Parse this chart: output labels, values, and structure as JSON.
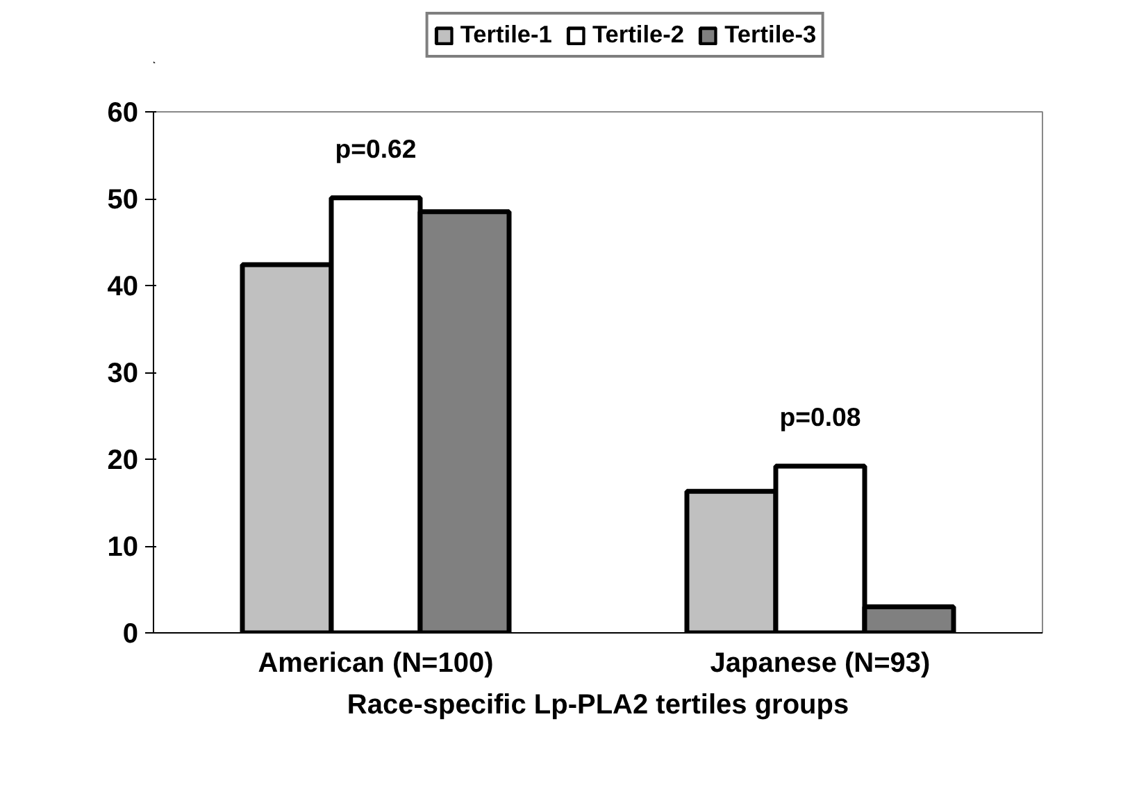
{
  "chart_data": {
    "type": "bar",
    "xlabel": "Race-specific Lp-PLA2 tertiles groups",
    "categories": [
      "American (N=100)",
      "Japanese (N=93)"
    ],
    "series": [
      {
        "name": "Tertile-1",
        "color": "#c0c0c0",
        "values": [
          42.4,
          16.3
        ]
      },
      {
        "name": "Tertile-2",
        "color": "#ffffff",
        "values": [
          50.1,
          19.2
        ]
      },
      {
        "name": "Tertile-3",
        "color": "#808080",
        "values": [
          48.5,
          3.0
        ]
      }
    ],
    "ylim": [
      0,
      60
    ],
    "yticks": [
      0,
      10,
      20,
      30,
      40,
      50,
      60
    ],
    "grid": false,
    "legend": "top",
    "annotations": [
      "p=0.62",
      "p=0.08"
    ]
  }
}
